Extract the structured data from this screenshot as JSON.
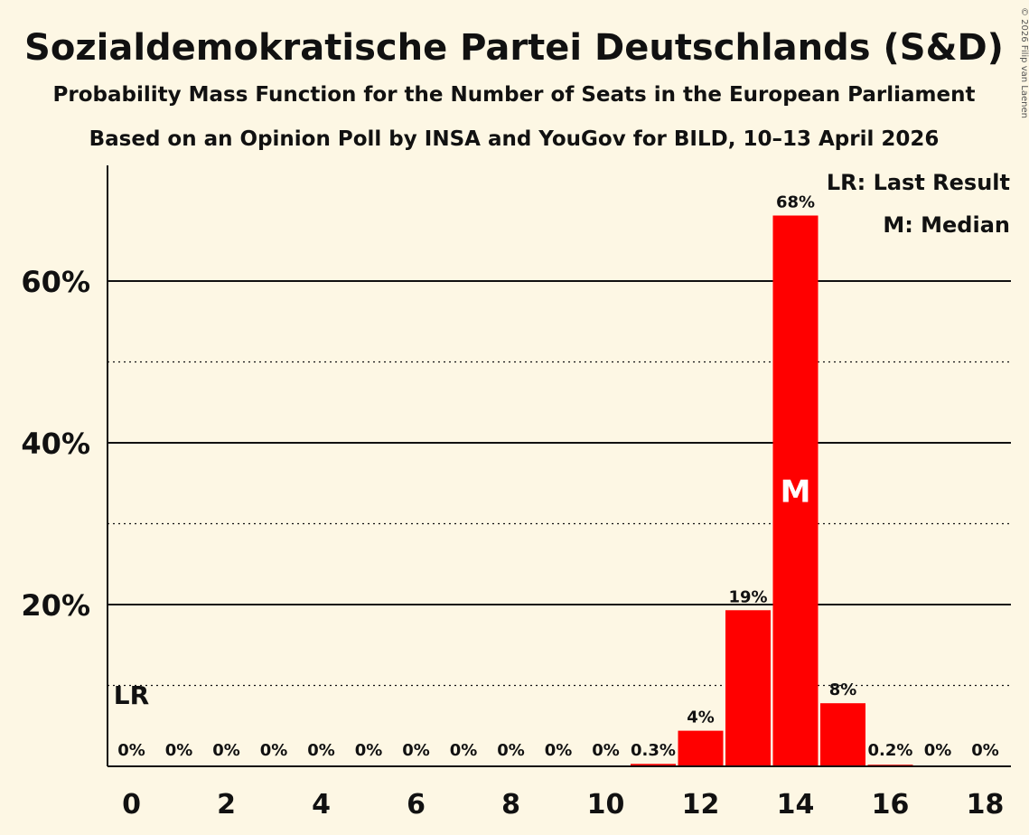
{
  "chart_data": {
    "type": "bar",
    "title": "Sozialdemokratische Partei Deutschlands (S&D)",
    "subtitle": "Probability Mass Function for the Number of Seats in the European Parliament",
    "subtitle2": "Based on an Opinion Poll by INSA and YouGov for BILD, 10–13 April 2026",
    "copyright": "© 2026 Filip van Laenen",
    "x": [
      0,
      1,
      2,
      3,
      4,
      5,
      6,
      7,
      8,
      9,
      10,
      11,
      12,
      13,
      14,
      15,
      16,
      17,
      18
    ],
    "values": [
      0,
      0,
      0,
      0,
      0,
      0,
      0,
      0,
      0,
      0,
      0,
      0.3,
      4.4,
      19.3,
      68.1,
      7.8,
      0.2,
      0,
      0
    ],
    "labels": [
      "0%",
      "0%",
      "0%",
      "0%",
      "0%",
      "0%",
      "0%",
      "0%",
      "0%",
      "0%",
      "0%",
      "0.3%",
      "4%",
      "19%",
      "68%",
      "8%",
      "0.2%",
      "0%",
      "0%"
    ],
    "xticks": [
      "0",
      "2",
      "4",
      "6",
      "8",
      "10",
      "12",
      "14",
      "16",
      "18"
    ],
    "yticks": [
      "20%",
      "40%",
      "60%"
    ],
    "ylim": [
      0,
      74
    ],
    "last_result": 0,
    "median": 14,
    "lr_marker": "LR",
    "median_marker": "M",
    "legend": [
      "LR: Last Result",
      "M: Median"
    ],
    "colors": {
      "bar": "#ff0000",
      "background": "#fdf7e4",
      "text": "#111111"
    }
  }
}
